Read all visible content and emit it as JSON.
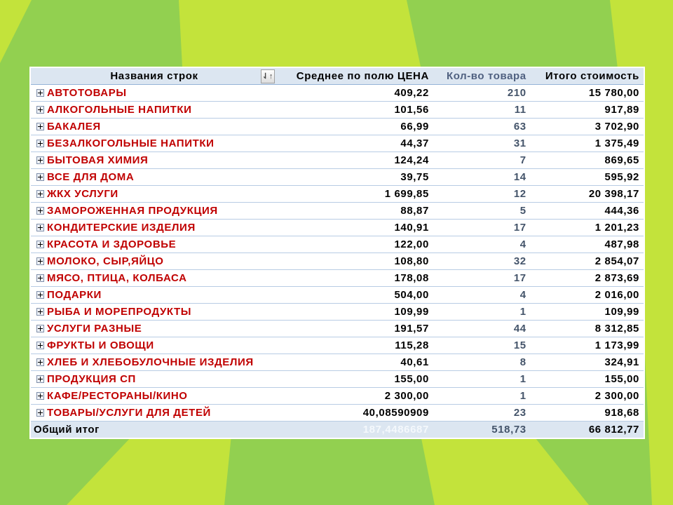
{
  "colors": {
    "background": "#92d050",
    "accent_lime": "#c3e33b",
    "category_text": "#c00000"
  },
  "header": {
    "col_names": "Названия строк",
    "col_avg": "Среднее по полю ЦЕНА",
    "col_count": "Кол-во товара",
    "col_total": "Итого стоимость",
    "sort_icon": "sort-filter-icon"
  },
  "rows": [
    {
      "name": "АВТОТОВАРЫ",
      "avg": "409,22",
      "count": "210",
      "total": "15 780,00"
    },
    {
      "name": "АЛКОГОЛЬНЫЕ НАПИТКИ",
      "avg": "101,56",
      "count": "11",
      "total": "917,89"
    },
    {
      "name": "БАКАЛЕЯ",
      "avg": "66,99",
      "count": "63",
      "total": "3 702,90"
    },
    {
      "name": "БЕЗАЛКОГОЛЬНЫЕ НАПИТКИ",
      "avg": "44,37",
      "count": "31",
      "total": "1 375,49"
    },
    {
      "name": "БЫТОВАЯ ХИМИЯ",
      "avg": "124,24",
      "count": "7",
      "total": "869,65"
    },
    {
      "name": "ВСЕ ДЛЯ ДОМА",
      "avg": "39,75",
      "count": "14",
      "total": "595,92"
    },
    {
      "name": "ЖКХ УСЛУГИ",
      "avg": "1 699,85",
      "count": "12",
      "total": "20 398,17"
    },
    {
      "name": "ЗАМОРОЖЕННАЯ ПРОДУКЦИЯ",
      "avg": "88,87",
      "count": "5",
      "total": "444,36"
    },
    {
      "name": "КОНДИТЕРСКИЕ ИЗДЕЛИЯ",
      "avg": "140,91",
      "count": "17",
      "total": "1 201,23"
    },
    {
      "name": "КРАСОТА И ЗДОРОВЬЕ",
      "avg": "122,00",
      "count": "4",
      "total": "487,98"
    },
    {
      "name": "МОЛОКО, СЫР,ЯЙЦО",
      "avg": "108,80",
      "count": "32",
      "total": "2 854,07"
    },
    {
      "name": "МЯСО, ПТИЦА, КОЛБАСА",
      "avg": "178,08",
      "count": "17",
      "total": "2 873,69"
    },
    {
      "name": "ПОДАРКИ",
      "avg": "504,00",
      "count": "4",
      "total": "2 016,00"
    },
    {
      "name": "РЫБА И МОРЕПРОДУКТЫ",
      "avg": "109,99",
      "count": "1",
      "total": "109,99"
    },
    {
      "name": "УСЛУГИ РАЗНЫЕ",
      "avg": "191,57",
      "count": "44",
      "total": "8 312,85"
    },
    {
      "name": "ФРУКТЫ И ОВОЩИ",
      "avg": "115,28",
      "count": "15",
      "total": "1 173,99"
    },
    {
      "name": "ХЛЕБ И ХЛЕБОБУЛОЧНЫЕ ИЗДЕЛИЯ",
      "avg": "40,61",
      "count": "8",
      "total": "324,91"
    },
    {
      "name": "ПРОДУКЦИЯ СП",
      "avg": "155,00",
      "count": "1",
      "total": "155,00"
    },
    {
      "name": "КАФЕ/РЕСТОРАНЫ/КИНО",
      "avg": "2 300,00",
      "count": "1",
      "total": "2 300,00"
    },
    {
      "name": "ТОВАРЫ/УСЛУГИ ДЛЯ ДЕТЕЙ",
      "avg": "40,08590909",
      "count": "23",
      "total": "918,68"
    }
  ],
  "grand_total": {
    "label": "Общий итог",
    "avg": "187,4486687",
    "count": "518,73",
    "total": "66 812,77"
  }
}
